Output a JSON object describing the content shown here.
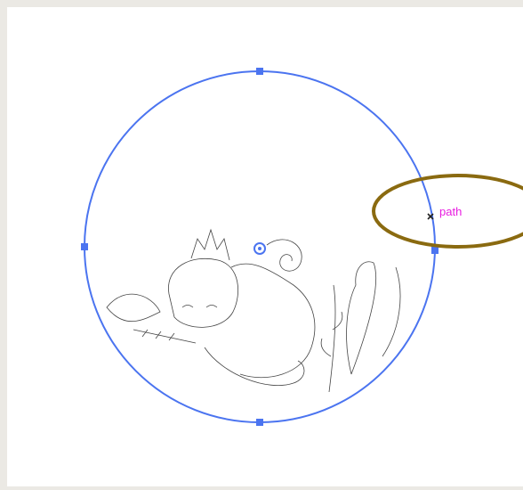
{
  "smart_guide": {
    "label": "path"
  }
}
